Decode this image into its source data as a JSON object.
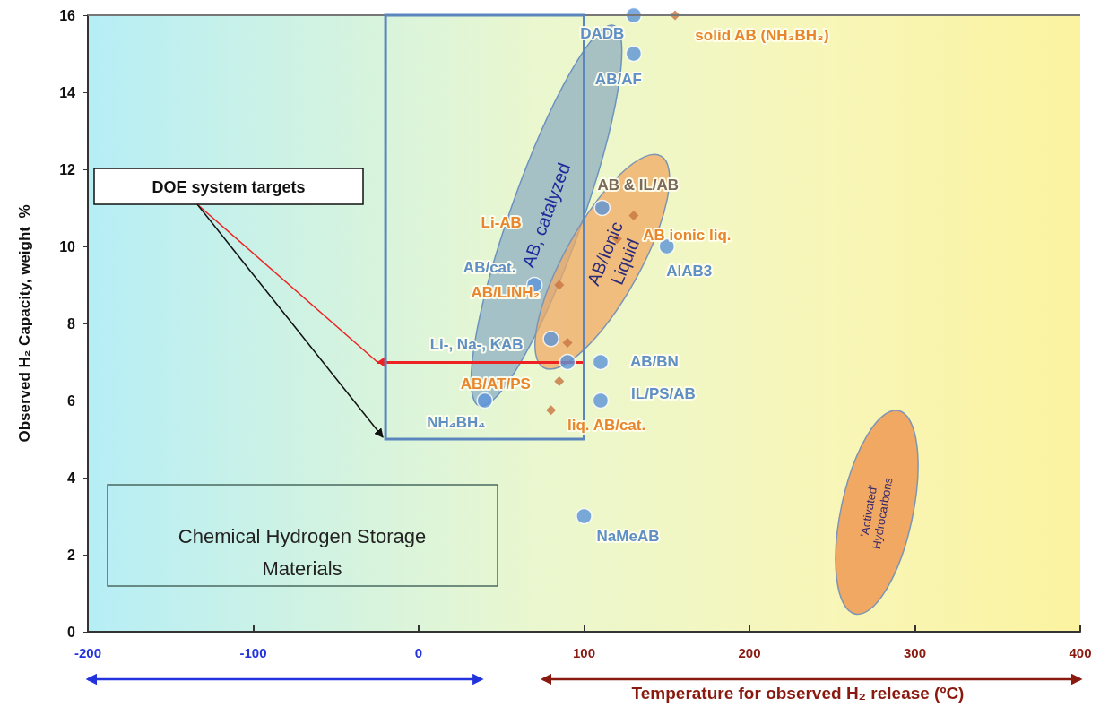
{
  "chart_data": {
    "type": "scatter",
    "xlabel": "Temperature for observed H₂ release (ºC)",
    "ylabel": "Observed H₂ Capacity, weight  %",
    "xlim": [
      -200,
      400
    ],
    "xticks": [
      -200,
      -100,
      0,
      100,
      200,
      300,
      400
    ],
    "ylim": [
      0,
      16
    ],
    "yticks": [
      0,
      2,
      4,
      6,
      8,
      10,
      12,
      14,
      16
    ],
    "grid": false,
    "series": [
      {
        "color": "#5b93d8",
        "marker": "circle",
        "x": [
          130,
          130,
          111,
          150,
          70,
          80,
          90,
          110,
          110,
          40,
          100
        ],
        "values": [
          16,
          15,
          11,
          10,
          9,
          7.6,
          7,
          7,
          6,
          6,
          3
        ]
      },
      {
        "color": "#c87441",
        "marker": "diamond",
        "x": [
          155,
          130,
          120,
          85,
          90,
          85,
          80
        ],
        "values": [
          16,
          10.8,
          10.2,
          9,
          7.5,
          6.5,
          5.75
        ]
      }
    ],
    "ref_lines": [
      {
        "axis": "y",
        "value": 7,
        "label": "DOE system targets",
        "color": "#ee2222"
      }
    ],
    "annotations": [
      {
        "text": "DADB",
        "x": 130,
        "y": 16
      },
      {
        "text": "AB/AF",
        "x": 130,
        "y": 15
      },
      {
        "text": "AlAB3",
        "x": 150,
        "y": 10
      },
      {
        "text": "AB/cat.",
        "x": 70,
        "y": 9
      },
      {
        "text": "Li-, Na-, KAB",
        "x": 80,
        "y": 7.6
      },
      {
        "text": "AB/BN",
        "x": 110,
        "y": 7
      },
      {
        "text": "IL/PS/AB",
        "x": 110,
        "y": 6
      },
      {
        "text": "NH₄BH₄",
        "x": 40,
        "y": 6
      },
      {
        "text": "NaMeAB",
        "x": 100,
        "y": 3
      },
      {
        "text": "solid AB (NH₃BH₃)",
        "x": 155,
        "y": 16
      },
      {
        "text": "AB & IL/AB",
        "x": 111,
        "y": 11
      },
      {
        "text": "AB ionic liq.",
        "x": 120,
        "y": 10.2
      },
      "Li-AB",
      {
        "text": "AB/LiNH₂",
        "x": 85,
        "y": 9
      },
      {
        "text": "AB/AT/PS",
        "x": 85,
        "y": 6.5
      },
      {
        "text": "liq. AB/cat.",
        "x": 80,
        "y": 5.75
      },
      "AB, catalyzed",
      "AB/Ionic Liquid",
      "'Activated' Hydrocarbons",
      "Chemical Hydrogen Storage Materials"
    ]
  }
}
